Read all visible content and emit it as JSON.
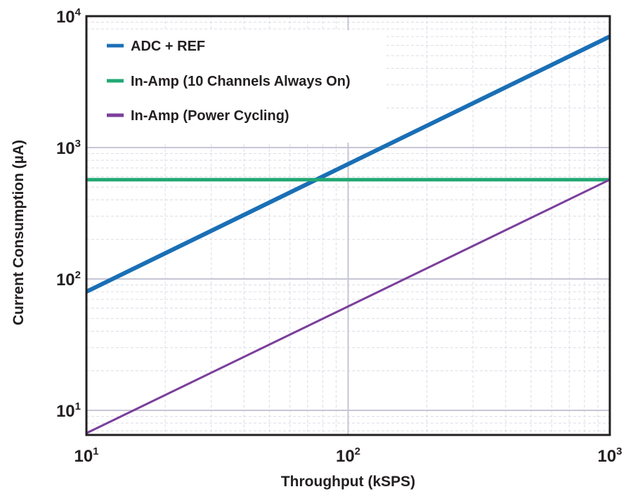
{
  "chart_data": {
    "type": "line",
    "title": "",
    "xlabel": "Throughput (kSPS)",
    "ylabel": "Current Consumption (µA)",
    "x_scale": "log",
    "y_scale": "log",
    "xlim": [
      10,
      1000
    ],
    "ylim": [
      6.5,
      10000
    ],
    "grid": true,
    "legend_position": "top-left",
    "x_ticks": [
      {
        "value": 10,
        "base": "10",
        "exp": "1"
      },
      {
        "value": 100,
        "base": "10",
        "exp": "2"
      },
      {
        "value": 1000,
        "base": "10",
        "exp": "3"
      }
    ],
    "y_ticks": [
      {
        "value": 10,
        "base": "10",
        "exp": "1"
      },
      {
        "value": 100,
        "base": "10",
        "exp": "2"
      },
      {
        "value": 1000,
        "base": "10",
        "exp": "3"
      },
      {
        "value": 10000,
        "base": "10",
        "exp": "4"
      }
    ],
    "series": [
      {
        "name": "ADC + REF",
        "color": "#1a6fb5",
        "x": [
          10,
          1000
        ],
        "y": [
          80,
          7000
        ]
      },
      {
        "name": "In-Amp (10 Channels Always On)",
        "color": "#22a874",
        "x": [
          10,
          1000
        ],
        "y": [
          570,
          570
        ]
      },
      {
        "name": "In-Amp (Power Cycling)",
        "color": "#7b3f9b",
        "x": [
          10,
          1000
        ],
        "y": [
          6.7,
          570
        ]
      }
    ]
  }
}
